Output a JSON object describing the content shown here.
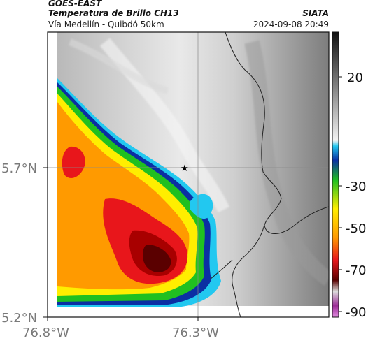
{
  "header": {
    "satellite": "GOES-EAST",
    "product": "Temperatura de Brillo CH13",
    "route": "Vía Medellín - Quibdó 50km",
    "agency": "SIATA",
    "datetime": "2024-09-08 20:49"
  },
  "map": {
    "lat_ticks": [
      {
        "value": 5.7,
        "label": "5.7°N"
      },
      {
        "value": 5.2,
        "label": "5.2°N"
      }
    ],
    "lon_ticks": [
      {
        "value": -76.8,
        "label": "76.8°W"
      },
      {
        "value": -76.3,
        "label": "76.3°W"
      }
    ],
    "marker": {
      "symbol": "★",
      "name": "route-point"
    },
    "colorbar_ticks": [
      "20",
      "-30",
      "-50",
      "-70",
      "-90"
    ],
    "colorbar_unit_hint": "brightness temperature",
    "colors": {
      "coldest": "#5a0000",
      "red": "#e8161b",
      "orange": "#ff9a00",
      "yellow": "#ffee00",
      "green": "#20c020",
      "blue": "#0b2fa3",
      "cyan": "#22c8f0",
      "gray_dark": "#666666",
      "gray_light": "#f0f0f0"
    }
  }
}
